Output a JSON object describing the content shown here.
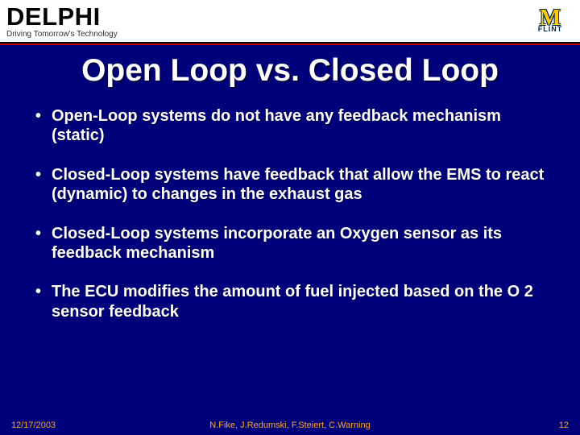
{
  "header": {
    "brand": "DELPHI",
    "tagline": "Driving Tomorrow's Technology",
    "logo": {
      "letter": "M",
      "sub": "FLINT"
    }
  },
  "title": "Open Loop vs. Closed Loop",
  "bullets": [
    "Open-Loop systems do not have any feedback mechanism (static)",
    "Closed-Loop systems have feedback that allow the EMS to react (dynamic) to changes in the exhaust gas",
    "Closed-Loop systems incorporate an Oxygen sensor as its feedback mechanism",
    "The ECU modifies the amount of fuel injected based on the O 2 sensor feedback"
  ],
  "footer": {
    "date": "12/17/2003",
    "authors": "N.Fike, J.Redumski, F.Steiert, C.Warning",
    "page": "12"
  },
  "colors": {
    "background": "#00007a",
    "header_bg": "#ffffff",
    "divider_black": "#000000",
    "divider_red": "#c00000",
    "text": "#ffffff",
    "footer_text": "#ffa726",
    "logo_maize": "#ffcb05",
    "logo_blue": "#00274c"
  }
}
